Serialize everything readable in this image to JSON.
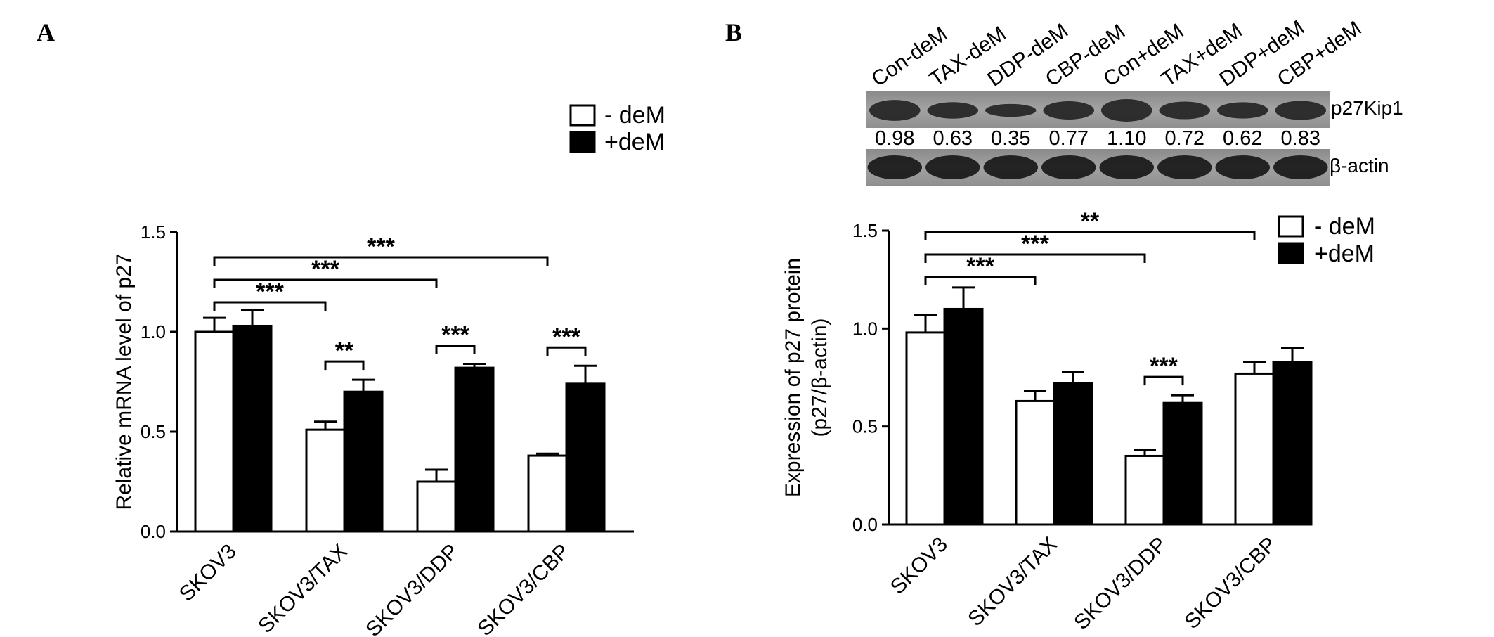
{
  "panels": {
    "a_label": "A",
    "b_label": "B"
  },
  "legend": {
    "minus": "- deM",
    "plus": "+deM"
  },
  "blot": {
    "lanes": [
      "Con-deM",
      "TAX-deM",
      "DDP-deM",
      "CBP-deM",
      "Con+deM",
      "TAX+deM",
      "DDP+deM",
      "CBP+deM"
    ],
    "values": [
      "0.98",
      "0.63",
      "0.35",
      "0.77",
      "1.10",
      "0.72",
      "0.62",
      "0.83"
    ],
    "protein_label": "p27Kip1",
    "loading_label": "β-actin"
  },
  "chart_data": [
    {
      "type": "bar",
      "panel": "A",
      "title": "",
      "xlabel": "",
      "ylabel": "Relative mRNA level of p27",
      "ylim": [
        0,
        1.5
      ],
      "yticks": [
        "0.0",
        "0.5",
        "1.0",
        "1.5"
      ],
      "categories": [
        "SKOV3",
        "SKOV3/TAX",
        "SKOV3/DDP",
        "SKOV3/CBP"
      ],
      "series": [
        {
          "name": "- deM",
          "values": [
            1.0,
            0.51,
            0.25,
            0.38
          ],
          "errors": [
            0.07,
            0.04,
            0.06,
            0.01
          ],
          "fill": "#ffffff"
        },
        {
          "name": "+deM",
          "values": [
            1.03,
            0.7,
            0.82,
            0.74
          ],
          "errors": [
            0.08,
            0.06,
            0.02,
            0.09
          ],
          "fill": "#000000"
        }
      ],
      "significance": [
        {
          "from": 0,
          "to": 1,
          "type": "between-groups",
          "label": "***"
        },
        {
          "from": 0,
          "to": 2,
          "type": "between-groups",
          "label": "***"
        },
        {
          "from": 0,
          "to": 3,
          "type": "between-groups",
          "label": "***"
        },
        {
          "group": 1,
          "type": "within-group",
          "label": "**"
        },
        {
          "group": 2,
          "type": "within-group",
          "label": "***"
        },
        {
          "group": 3,
          "type": "within-group",
          "label": "***"
        }
      ],
      "legend_position": "top-right",
      "grid": false
    },
    {
      "type": "bar",
      "panel": "B",
      "title": "",
      "xlabel": "",
      "ylabel": "Expression of p27 protein",
      "ylabel2": "(p27/β-actin)",
      "ylim": [
        0,
        1.5
      ],
      "yticks": [
        "0.0",
        "0.5",
        "1.0",
        "1.5"
      ],
      "categories": [
        "SKOV3",
        "SKOV3/TAX",
        "SKOV3/DDP",
        "SKOV3/CBP"
      ],
      "series": [
        {
          "name": "- deM",
          "values": [
            0.98,
            0.63,
            0.35,
            0.77
          ],
          "errors": [
            0.09,
            0.05,
            0.03,
            0.06
          ],
          "fill": "#ffffff"
        },
        {
          "name": "+deM",
          "values": [
            1.1,
            0.72,
            0.62,
            0.83
          ],
          "errors": [
            0.11,
            0.06,
            0.04,
            0.07
          ],
          "fill": "#000000"
        }
      ],
      "significance": [
        {
          "from": 0,
          "to": 1,
          "type": "between-groups",
          "label": "***"
        },
        {
          "from": 0,
          "to": 2,
          "type": "between-groups",
          "label": "***"
        },
        {
          "from": 0,
          "to": 3,
          "type": "between-groups",
          "label": "**"
        },
        {
          "group": 2,
          "type": "within-group",
          "label": "***"
        }
      ],
      "legend_position": "top-right",
      "grid": false
    }
  ]
}
